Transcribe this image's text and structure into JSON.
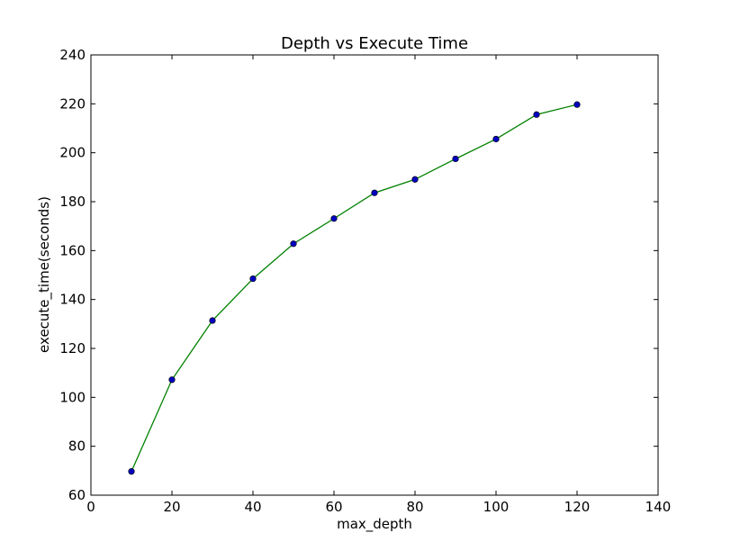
{
  "chart_data": {
    "type": "line",
    "title": "Depth vs Execute Time",
    "xlabel": "max_depth",
    "ylabel": "execute_time(seconds)",
    "xlim": [
      0,
      140
    ],
    "ylim": [
      60,
      240
    ],
    "xticks": [
      0,
      20,
      40,
      60,
      80,
      100,
      120,
      140
    ],
    "yticks": [
      60,
      80,
      100,
      120,
      140,
      160,
      180,
      200,
      220,
      240
    ],
    "grid": false,
    "series": [
      {
        "x": [
          10,
          20,
          30,
          40,
          50,
          60,
          70,
          80,
          90,
          100,
          110,
          120
        ],
        "y": [
          69.7,
          107.2,
          131.4,
          148.5,
          162.8,
          173.1,
          183.6,
          189.1,
          197.5,
          205.6,
          215.6,
          219.7
        ],
        "line_color": "#008000",
        "marker_color": "#0000bf"
      }
    ]
  }
}
